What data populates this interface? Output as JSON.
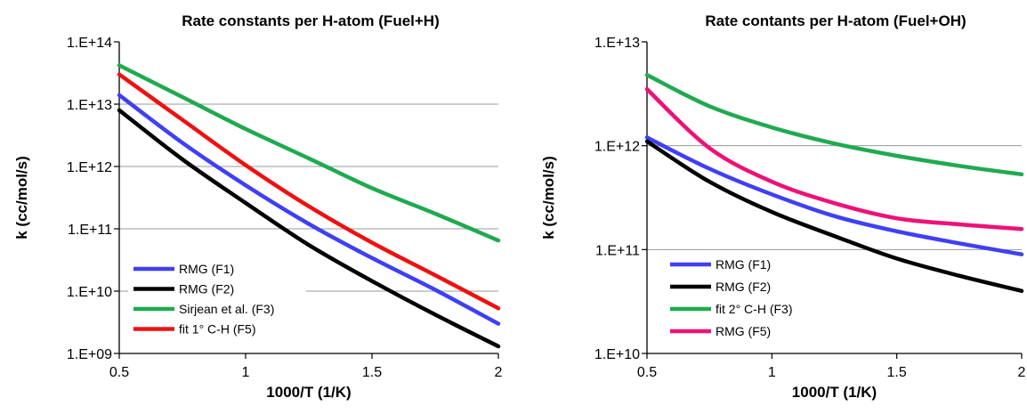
{
  "chart_data": [
    {
      "type": "line",
      "title": "Rate constants per H-atom (Fuel+H)",
      "xlabel": "1000/T (1/K)",
      "ylabel": "k (cc/mol/s)",
      "xlim": [
        0.5,
        2
      ],
      "ylim": [
        1000000000.0,
        100000000000000.0
      ],
      "yscale": "log",
      "grid": "horizontal",
      "legend_position": "bottom-left",
      "x_ticks": [
        "0.5",
        "1",
        "1.5",
        "2"
      ],
      "y_ticks": [
        "1.E+09",
        "1.E+10",
        "1.E+11",
        "1.E+12",
        "1.E+13",
        "1.E+14"
      ],
      "x": [
        0.5,
        0.75,
        1.0,
        1.25,
        1.5,
        1.75,
        2.0
      ],
      "series": [
        {
          "name": "RMG (F1)",
          "color": "#3f3ff5",
          "values": [
            14000000000000.0,
            2400000000000.0,
            500000000000.0,
            120000000000.0,
            34000000000.0,
            10500000000.0,
            3000000000.0
          ]
        },
        {
          "name": "RMG (F2)",
          "color": "#000000",
          "values": [
            8000000000000.0,
            1300000000000.0,
            260000000000.0,
            55000000000.0,
            14500000000.0,
            4200000000.0,
            1300000000.0
          ]
        },
        {
          "name": "Sirjean et al. (F3)",
          "color": "#1faa50",
          "values": [
            42000000000000.0,
            13000000000000.0,
            4000000000000.0,
            1350000000000.0,
            450000000000.0,
            175000000000.0,
            65000000000.0
          ]
        },
        {
          "name": "fit 1° C-H (F5)",
          "color": "#ee1111",
          "values": [
            30000000000000.0,
            5600000000000.0,
            1050000000000.0,
            230000000000.0,
            60000000000.0,
            18000000000.0,
            5300000000.0
          ]
        }
      ]
    },
    {
      "type": "line",
      "title": "Rate contants per H-atom (Fuel+OH)",
      "xlabel": "1000/T (1/K)",
      "ylabel": "k (cc/mol/s)",
      "xlim": [
        0.5,
        2
      ],
      "ylim": [
        10000000000.0,
        10000000000000.0
      ],
      "yscale": "log",
      "grid": "horizontal",
      "legend_position": "bottom-left",
      "x_ticks": [
        "0.5",
        "1",
        "1.5",
        "2"
      ],
      "y_ticks": [
        "1.E+10",
        "1.E+11",
        "1.E+12",
        "1.E+13"
      ],
      "x": [
        0.5,
        0.75,
        1.0,
        1.25,
        1.5,
        1.75,
        2.0
      ],
      "series": [
        {
          "name": "RMG (F1)",
          "color": "#3f3ff5",
          "values": [
            1200000000000.0,
            600000000000.0,
            340000000000.0,
            210000000000.0,
            150000000000.0,
            115000000000.0,
            90000000000.0
          ]
        },
        {
          "name": "RMG (F2)",
          "color": "#000000",
          "values": [
            1100000000000.0,
            450000000000.0,
            230000000000.0,
            135000000000.0,
            82000000000.0,
            56000000000.0,
            40000000000.0
          ]
        },
        {
          "name": "fit 2° C-H (F3)",
          "color": "#1faa50",
          "values": [
            4800000000000.0,
            2400000000000.0,
            1500000000000.0,
            1050000000000.0,
            800000000000.0,
            640000000000.0,
            530000000000.0
          ]
        },
        {
          "name": "RMG (F5)",
          "color": "#ee1177",
          "values": [
            3500000000000.0,
            950000000000.0,
            450000000000.0,
            280000000000.0,
            200000000000.0,
            175000000000.0,
            158000000000.0
          ]
        }
      ]
    }
  ]
}
